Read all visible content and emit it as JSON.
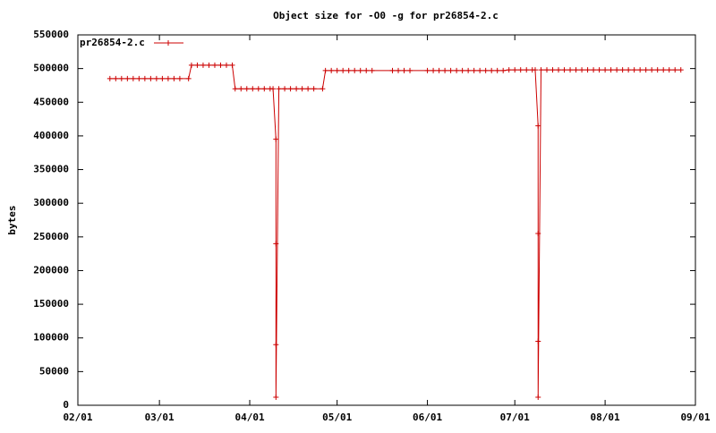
{
  "chart_data": {
    "type": "line",
    "title": "Object size for -O0 -g for pr26854-2.c",
    "y_label": "bytes",
    "x": [
      "02/12",
      "02/14",
      "02/16",
      "02/18",
      "02/20",
      "02/22",
      "02/24",
      "02/26",
      "02/28",
      "03/02",
      "03/04",
      "03/06",
      "03/08",
      "03/11",
      "03/12",
      "03/14",
      "03/16",
      "03/18",
      "03/20",
      "03/22",
      "03/24",
      "03/26",
      "03/27",
      "03/29",
      "03/31",
      "04/02",
      "04/04",
      "04/06",
      "04/08",
      "04/09",
      "04/10",
      "04/10",
      "04/10",
      "04/10",
      "04/11",
      "04/13",
      "04/15",
      "04/17",
      "04/19",
      "04/21",
      "04/23",
      "04/26",
      "04/27",
      "04/29",
      "05/01",
      "05/03",
      "05/05",
      "05/07",
      "05/09",
      "05/11",
      "05/13",
      "05/20",
      "05/22",
      "05/24",
      "05/26",
      "06/01",
      "06/03",
      "06/05",
      "06/07",
      "06/09",
      "06/11",
      "06/13",
      "06/15",
      "06/17",
      "06/19",
      "06/21",
      "06/23",
      "06/25",
      "06/27",
      "06/29",
      "07/01",
      "07/03",
      "07/05",
      "07/07",
      "07/08",
      "07/09",
      "07/09",
      "07/09",
      "07/09",
      "07/10",
      "07/12",
      "07/14",
      "07/16",
      "07/18",
      "07/20",
      "07/22",
      "07/24",
      "07/26",
      "07/28",
      "07/30",
      "08/01",
      "08/03",
      "08/05",
      "08/07",
      "08/09",
      "08/11",
      "08/13",
      "08/15",
      "08/17",
      "08/19",
      "08/21",
      "08/23",
      "08/25",
      "08/27"
    ],
    "series": [
      {
        "name": "pr26854-2.c",
        "color": "#cc0000",
        "values": [
          485000,
          485000,
          485000,
          485000,
          485000,
          485000,
          485000,
          485000,
          485000,
          485000,
          485000,
          485000,
          485000,
          485000,
          505000,
          505000,
          505000,
          505000,
          505000,
          505000,
          505000,
          505000,
          470000,
          470000,
          470000,
          470000,
          470000,
          470000,
          470000,
          470000,
          395000,
          240000,
          90000,
          12000,
          470000,
          470000,
          470000,
          470000,
          470000,
          470000,
          470000,
          470000,
          497000,
          497000,
          497000,
          497000,
          497000,
          497000,
          497000,
          497000,
          497000,
          497000,
          497000,
          497000,
          497000,
          497000,
          497000,
          497000,
          497000,
          497000,
          497000,
          497000,
          497000,
          497000,
          497000,
          497000,
          497000,
          497000,
          497000,
          498000,
          498000,
          498000,
          498000,
          498000,
          498000,
          415000,
          255000,
          95000,
          12000,
          498000,
          498000,
          498000,
          498000,
          498000,
          498000,
          498000,
          498000,
          498000,
          498000,
          498000,
          498000,
          498000,
          498000,
          498000,
          498000,
          498000,
          498000,
          498000,
          498000,
          498000,
          498000,
          498000,
          498000,
          498000
        ]
      }
    ],
    "xlim": [
      "02/01",
      "09/01"
    ],
    "xticks": [
      "02/01",
      "03/01",
      "04/01",
      "05/01",
      "06/01",
      "07/01",
      "08/01",
      "09/01"
    ],
    "ylim": [
      0,
      550000
    ],
    "yticks": [
      0,
      50000,
      100000,
      150000,
      200000,
      250000,
      300000,
      350000,
      400000,
      450000,
      500000,
      550000
    ],
    "grid": false,
    "legend": "top-left"
  }
}
